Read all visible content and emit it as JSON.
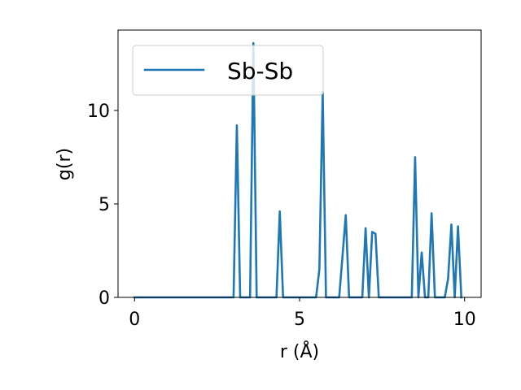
{
  "chart_data": {
    "type": "line",
    "title": "",
    "xlabel": "r (Å)",
    "ylabel": "g(r)",
    "xlim": [
      -0.5,
      10.5
    ],
    "ylim": [
      0,
      14.3
    ],
    "x_ticks": [
      0,
      5,
      10
    ],
    "x_tick_labels": [
      "0",
      "5",
      "10"
    ],
    "y_ticks": [
      0,
      5,
      10
    ],
    "y_tick_labels": [
      "0",
      "5",
      "10"
    ],
    "grid": false,
    "legend_position": "top-left",
    "series": [
      {
        "name": "Sb-Sb",
        "color": "#1f77b4",
        "x": [
          0.0,
          0.1,
          0.2,
          0.3,
          0.4,
          0.5,
          0.6,
          0.7,
          0.8,
          0.9,
          1.0,
          1.1,
          1.2,
          1.3,
          1.4,
          1.5,
          1.6,
          1.7,
          1.8,
          1.9,
          2.0,
          2.1,
          2.2,
          2.3,
          2.4,
          2.5,
          2.6,
          2.7,
          2.8,
          2.9,
          3.0,
          3.1,
          3.2,
          3.3,
          3.4,
          3.5,
          3.6,
          3.7,
          3.8,
          3.9,
          4.0,
          4.1,
          4.2,
          4.3,
          4.4,
          4.5,
          4.6,
          4.7,
          4.8,
          4.9,
          5.0,
          5.1,
          5.2,
          5.3,
          5.4,
          5.5,
          5.6,
          5.7,
          5.8,
          5.9,
          6.0,
          6.1,
          6.2,
          6.3,
          6.4,
          6.5,
          6.6,
          6.7,
          6.8,
          6.9,
          7.0,
          7.1,
          7.2,
          7.3,
          7.4,
          7.5,
          7.6,
          7.7,
          7.8,
          7.9,
          8.0,
          8.1,
          8.2,
          8.3,
          8.4,
          8.5,
          8.6,
          8.7,
          8.8,
          8.9,
          9.0,
          9.1,
          9.2,
          9.3,
          9.4,
          9.5,
          9.6,
          9.7,
          9.8,
          9.9
        ],
        "values": [
          0,
          0,
          0,
          0,
          0,
          0,
          0,
          0,
          0,
          0,
          0,
          0,
          0,
          0,
          0,
          0,
          0,
          0,
          0,
          0,
          0,
          0,
          0,
          0,
          0,
          0,
          0,
          0,
          0,
          0,
          0,
          9.2,
          0,
          0,
          0,
          0,
          13.6,
          0,
          0,
          0,
          0,
          0,
          0,
          0,
          4.6,
          0,
          0,
          0,
          0,
          0,
          0,
          0,
          0,
          0,
          0,
          0,
          1.5,
          11.0,
          0,
          0,
          0,
          0,
          0,
          2.2,
          4.4,
          0,
          0,
          0,
          0,
          0,
          3.7,
          0,
          3.5,
          3.4,
          0,
          0,
          0,
          0,
          0,
          0,
          0,
          0,
          0,
          0,
          0,
          7.5,
          0,
          2.4,
          0,
          0,
          4.5,
          0,
          0,
          0,
          0,
          1.0,
          3.9,
          0,
          3.8,
          0
        ]
      }
    ]
  }
}
